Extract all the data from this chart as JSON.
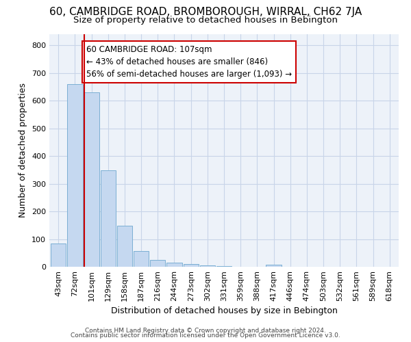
{
  "title": "60, CAMBRIDGE ROAD, BROMBOROUGH, WIRRAL, CH62 7JA",
  "subtitle": "Size of property relative to detached houses in Bebington",
  "xlabel": "Distribution of detached houses by size in Bebington",
  "ylabel": "Number of detached properties",
  "footer1": "Contains HM Land Registry data © Crown copyright and database right 2024.",
  "footer2": "Contains public sector information licensed under the Open Government Licence v3.0.",
  "bar_labels": [
    "43sqm",
    "72sqm",
    "101sqm",
    "129sqm",
    "158sqm",
    "187sqm",
    "216sqm",
    "244sqm",
    "273sqm",
    "302sqm",
    "331sqm",
    "359sqm",
    "388sqm",
    "417sqm",
    "446sqm",
    "474sqm",
    "503sqm",
    "532sqm",
    "561sqm",
    "589sqm",
    "618sqm"
  ],
  "bar_values": [
    83,
    660,
    630,
    348,
    148,
    57,
    25,
    15,
    10,
    5,
    2,
    0,
    0,
    8,
    0,
    0,
    0,
    0,
    0,
    0,
    0
  ],
  "bar_color": "#c5d8f0",
  "bar_edge_color": "#7bafd4",
  "grid_color": "#c8d4e8",
  "background_color": "#edf2f9",
  "property_label": "60 CAMBRIDGE ROAD: 107sqm",
  "annotation1": "← 43% of detached houses are smaller (846)",
  "annotation2": "56% of semi-detached houses are larger (1,093) →",
  "vline_bar_index": 2,
  "vline_color": "#cc0000",
  "box_color": "#cc0000",
  "ylim": [
    0,
    840
  ],
  "yticks": [
    0,
    100,
    200,
    300,
    400,
    500,
    600,
    700,
    800
  ],
  "title_fontsize": 11,
  "subtitle_fontsize": 9.5,
  "axis_label_fontsize": 9,
  "tick_fontsize": 8,
  "annotation_fontsize": 8.5
}
